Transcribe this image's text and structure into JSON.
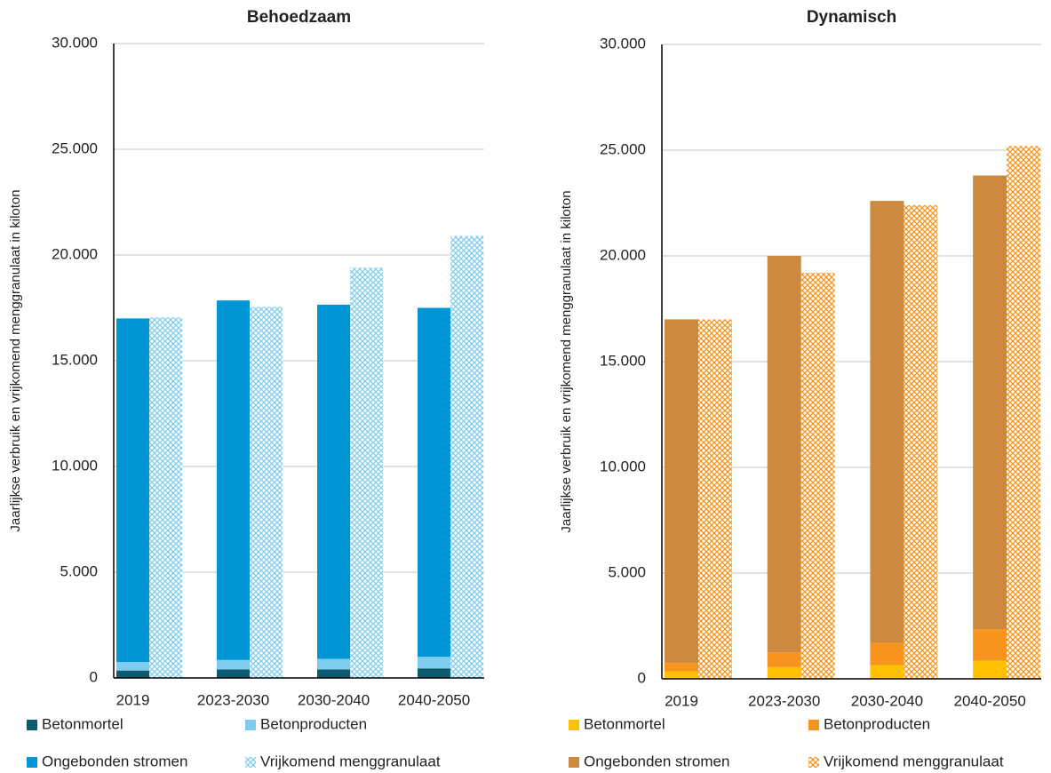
{
  "chart_data": [
    {
      "type": "bar",
      "title": "Behoedzaam",
      "y_label": "Jaarlijkse verbruik en vrijkomend menggranulaat in kiloton",
      "categories": [
        "2019",
        "2023-2030",
        "2030-2040",
        "2040-2050"
      ],
      "ylim": [
        0,
        30000
      ],
      "yticks": [
        0,
        {
          "value": 5000,
          "label": "5.000"
        },
        {
          "value": 10000,
          "label": "10.000"
        },
        {
          "value": 15000,
          "label": "15.000"
        },
        {
          "value": 20000,
          "label": "20.000"
        },
        {
          "value": 25000,
          "label": "25.000"
        },
        {
          "value": 30000,
          "label": "30.000"
        }
      ],
      "grid": true,
      "series": [
        {
          "name": "Betonmortel",
          "color": "#0e5a6e",
          "values": [
            350,
            400,
            400,
            450
          ]
        },
        {
          "name": "Betonproducten",
          "color": "#7fcdee",
          "values": [
            400,
            450,
            500,
            550
          ]
        },
        {
          "name": "Ongebonden stromen",
          "color": "#0096d6",
          "values": [
            16250,
            17000,
            16750,
            16500
          ]
        },
        {
          "name": "Vrijkomend menggranulaat",
          "color": "#7fcdee",
          "hatch": true,
          "values": [
            17050,
            17550,
            19400,
            20900
          ]
        }
      ]
    },
    {
      "type": "bar",
      "title": "Dynamisch",
      "y_label": "Jaarlijkse verbruik en vrijkomend menggranulaat in kiloton",
      "categories": [
        "2019",
        "2023-2030",
        "2030-2040",
        "2040-2050"
      ],
      "ylim": [
        0,
        30000
      ],
      "yticks": [
        0,
        {
          "value": 5000,
          "label": "5.000"
        },
        {
          "value": 10000,
          "label": "10.000"
        },
        {
          "value": 15000,
          "label": "15.000"
        },
        {
          "value": 20000,
          "label": "20.000"
        },
        {
          "value": 25000,
          "label": "25.000"
        },
        {
          "value": 30000,
          "label": "30.000"
        }
      ],
      "grid": true,
      "series": [
        {
          "name": "Betonmortel",
          "color": "#ffc000",
          "values": [
            350,
            550,
            650,
            850
          ]
        },
        {
          "name": "Betonproducten",
          "color": "#f7941d",
          "values": [
            400,
            700,
            1050,
            1500
          ]
        },
        {
          "name": "Ongebonden stromen",
          "color": "#cd8a3e",
          "values": [
            16250,
            18750,
            20900,
            21450
          ]
        },
        {
          "name": "Vrijkomend menggranulaat",
          "color": "#f7941d",
          "hatch": true,
          "values": [
            17000,
            19200,
            22400,
            25200
          ]
        }
      ]
    }
  ]
}
